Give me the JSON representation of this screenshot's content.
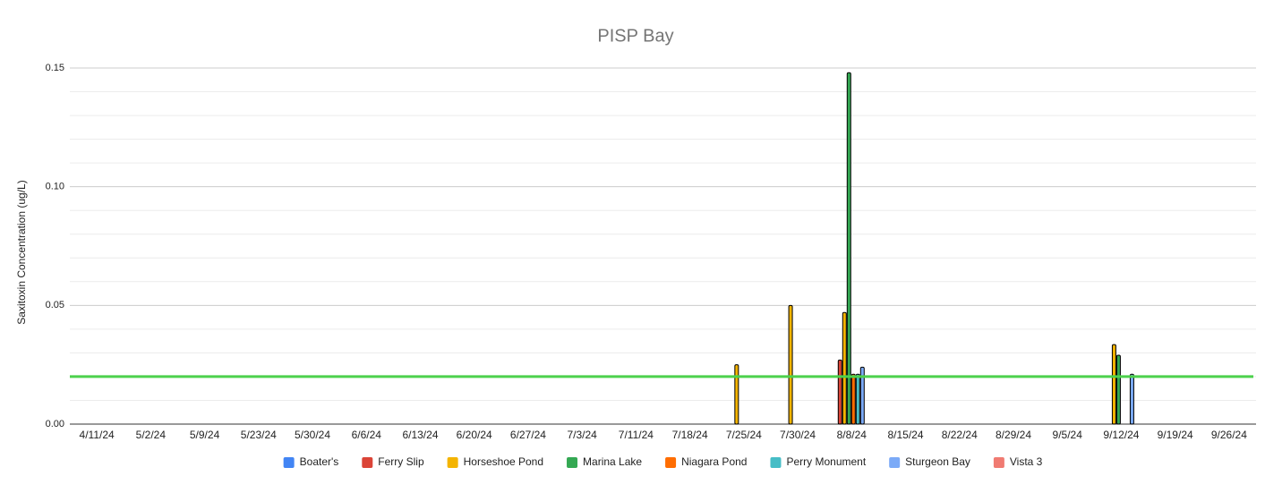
{
  "chart_data": {
    "type": "bar",
    "title": "PISP Bay",
    "y_axis_label": "Saxitoxin Concentration (ug/L)",
    "categories": [
      "4/11/24",
      "5/2/24",
      "5/9/24",
      "5/23/24",
      "5/30/24",
      "6/6/24",
      "6/13/24",
      "6/20/24",
      "6/27/24",
      "7/3/24",
      "7/11/24",
      "7/18/24",
      "7/25/24",
      "7/30/24",
      "8/8/24",
      "8/15/24",
      "8/22/24",
      "8/29/24",
      "9/5/24",
      "9/12/24",
      "9/19/24",
      "9/26/24"
    ],
    "series": [
      {
        "name": "Boater's",
        "color": "#4285f4",
        "values": [
          null,
          null,
          null,
          null,
          null,
          null,
          null,
          null,
          null,
          null,
          null,
          null,
          null,
          null,
          null,
          null,
          null,
          null,
          null,
          null,
          null,
          null
        ]
      },
      {
        "name": "Ferry Slip",
        "color": "#db4437",
        "values": [
          null,
          null,
          null,
          null,
          null,
          null,
          null,
          null,
          null,
          null,
          null,
          null,
          null,
          null,
          0.027,
          null,
          null,
          null,
          null,
          null,
          null,
          null
        ]
      },
      {
        "name": "Horseshoe Pond",
        "color": "#f4b400",
        "values": [
          null,
          null,
          null,
          null,
          null,
          null,
          null,
          null,
          null,
          null,
          null,
          null,
          0.025,
          0.05,
          0.047,
          null,
          null,
          null,
          null,
          0.0335,
          null,
          null
        ]
      },
      {
        "name": "Marina Lake",
        "color": "#34a853",
        "values": [
          null,
          null,
          null,
          null,
          null,
          null,
          null,
          null,
          null,
          null,
          null,
          null,
          null,
          null,
          0.148,
          null,
          null,
          null,
          null,
          0.029,
          null,
          null
        ]
      },
      {
        "name": "Niagara Pond",
        "color": "#ff6d01",
        "values": [
          null,
          null,
          null,
          null,
          null,
          null,
          null,
          null,
          null,
          null,
          null,
          null,
          null,
          null,
          0.021,
          null,
          null,
          null,
          null,
          null,
          null,
          null
        ]
      },
      {
        "name": "Perry Monument",
        "color": "#46bdc6",
        "values": [
          null,
          null,
          null,
          null,
          null,
          null,
          null,
          null,
          null,
          null,
          null,
          null,
          null,
          null,
          0.021,
          null,
          null,
          null,
          null,
          null,
          null,
          null
        ]
      },
      {
        "name": "Sturgeon Bay",
        "color": "#7baaf7",
        "values": [
          null,
          null,
          null,
          null,
          null,
          null,
          null,
          null,
          null,
          null,
          null,
          null,
          null,
          null,
          0.024,
          null,
          null,
          null,
          null,
          0.021,
          null,
          null
        ]
      },
      {
        "name": "Vista 3",
        "color": "#f07b72",
        "values": [
          null,
          null,
          null,
          null,
          null,
          null,
          null,
          null,
          null,
          null,
          null,
          null,
          null,
          null,
          null,
          null,
          null,
          null,
          null,
          null,
          null,
          null
        ]
      }
    ],
    "ylim": [
      0,
      0.15
    ],
    "yticks": [
      {
        "value": 0,
        "label": "0.00"
      },
      0.05,
      {
        "value": 0.1,
        "label": "0.10"
      },
      0.15
    ],
    "minor_yticks": [
      0.01,
      0.02,
      0.03,
      0.04,
      0.06,
      0.07,
      0.08,
      0.09,
      0.11,
      0.12,
      0.13,
      0.14
    ],
    "grid": true,
    "threshold": 0.02,
    "threshold_color": "#4cd14c",
    "legend": "bottom"
  }
}
